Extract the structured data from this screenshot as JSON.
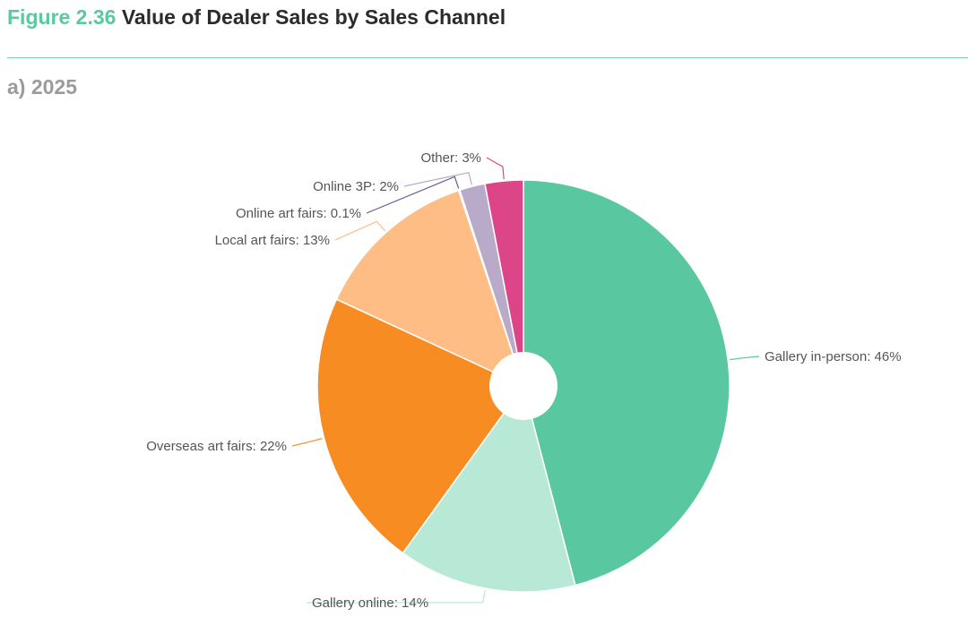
{
  "header": {
    "figure_number": "Figure 2.36",
    "title": "Value of Dealer Sales by Sales Channel"
  },
  "subtitle": "a) 2025",
  "chart_data": {
    "type": "pie",
    "donut_hole": true,
    "slices": [
      {
        "label": "Gallery in-person: 46%",
        "value": 46,
        "color": "#59c8a0"
      },
      {
        "label": "Gallery online: 14%",
        "value": 14,
        "color": "#b8e8d6"
      },
      {
        "label": "Overseas art fairs: 22%",
        "value": 22,
        "color": "#f78c23"
      },
      {
        "label": "Local art fairs: 13%",
        "value": 13,
        "color": "#fdbd84"
      },
      {
        "label": "Online art fairs: 0.1%",
        "value": 0.1,
        "color": "#6a5a93"
      },
      {
        "label": "Online 3P: 2%",
        "value": 2,
        "color": "#b9aac9"
      },
      {
        "label": "Other: 3%",
        "value": 3,
        "color": "#dc4689"
      }
    ]
  }
}
